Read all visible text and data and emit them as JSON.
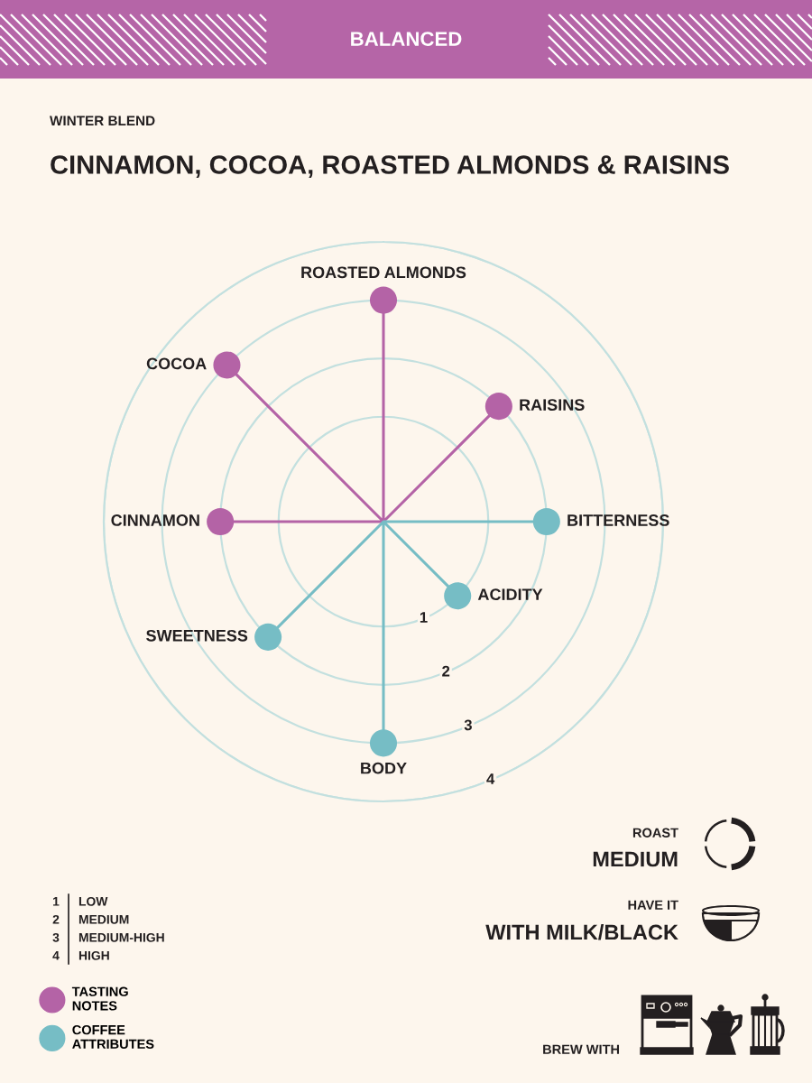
{
  "chart_data": {
    "type": "radar",
    "title": "CINNAMON, COCOA, ROASTED ALMONDS & RAISINS",
    "subtitle": "WINTER BLEND",
    "categories": [
      "ROASTED ALMONDS",
      "RAISINS",
      "BITTERNESS",
      "ACIDITY",
      "BODY",
      "SWEETNESS",
      "CINNAMON",
      "COCOA"
    ],
    "series": [
      {
        "name": "TASTING NOTES",
        "color": "#b463a6",
        "values": [
          3,
          2,
          null,
          null,
          null,
          null,
          2,
          3
        ]
      },
      {
        "name": "COFFEE ATTRIBUTES",
        "color": "#76bdc5",
        "values": [
          null,
          null,
          2,
          1,
          3,
          2,
          null,
          null
        ]
      }
    ],
    "ylim": [
      -0.8,
      4
    ],
    "yticks": [
      1,
      2,
      3,
      4
    ],
    "grid": true,
    "marker": "circle",
    "legend": "bottom left",
    "annotations": [
      "BALANCED",
      "1",
      "LOW",
      "2",
      "MEDIUM",
      "3",
      "MEDIUM-HIGH",
      "4",
      "HIGH",
      "ROAST",
      "MEDIUM",
      "HAVE IT",
      "WITH MILK/BLACK",
      "BREW WITH"
    ]
  }
}
